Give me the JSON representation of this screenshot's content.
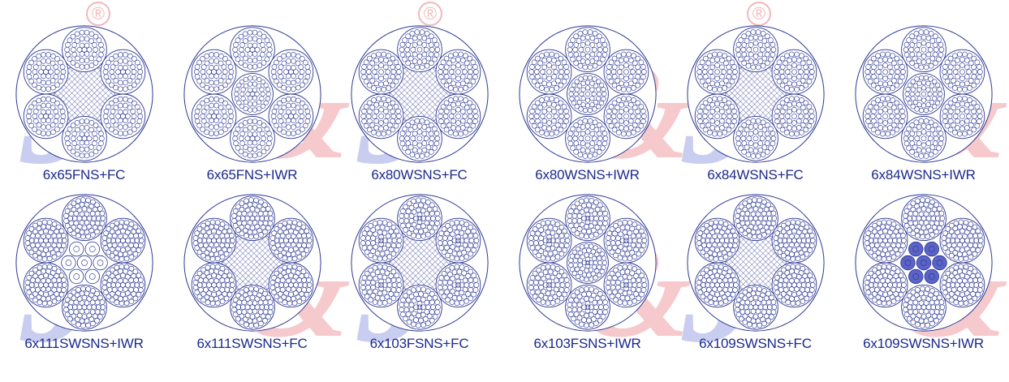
{
  "diagram_data": {
    "rows": [
      [
        {
          "label": "6x65FNS+FC",
          "core": "fc",
          "strand": "filler"
        },
        {
          "label": "6x65FNS+IWR",
          "core": "iwr",
          "strand": "filler"
        },
        {
          "label": "6x80WSNS+FC",
          "core": "fc",
          "strand": "warrington"
        },
        {
          "label": "6x80WSNS+IWR",
          "core": "iwr",
          "strand": "warrington"
        },
        {
          "label": "6x84WSNS+FC",
          "core": "fc",
          "strand": "warrington"
        },
        {
          "label": "6x84WSNS+IWR",
          "core": "iwr",
          "strand": "warrington"
        }
      ],
      [
        {
          "label": "6x111SWSNS+IWR",
          "core": "iwrc",
          "strand": "seale-warrington"
        },
        {
          "label": "6x111SWSNS+FC",
          "core": "fc",
          "strand": "seale-warrington"
        },
        {
          "label": "6x103FSNS+FC",
          "core": "fc",
          "strand": "filler-seale"
        },
        {
          "label": "6x103FSNS+IWR",
          "core": "iwr",
          "strand": "filler-seale"
        },
        {
          "label": "6x109SWSNS+FC",
          "core": "fc",
          "strand": "seale-warrington"
        },
        {
          "label": "6x109SWSNS+IWR",
          "core": "iwrc",
          "strand": "seale-warrington"
        }
      ]
    ]
  },
  "colors": {
    "wire": "#2a3590",
    "core_fill": "#5b63c6",
    "label": "#1b2a8c"
  }
}
